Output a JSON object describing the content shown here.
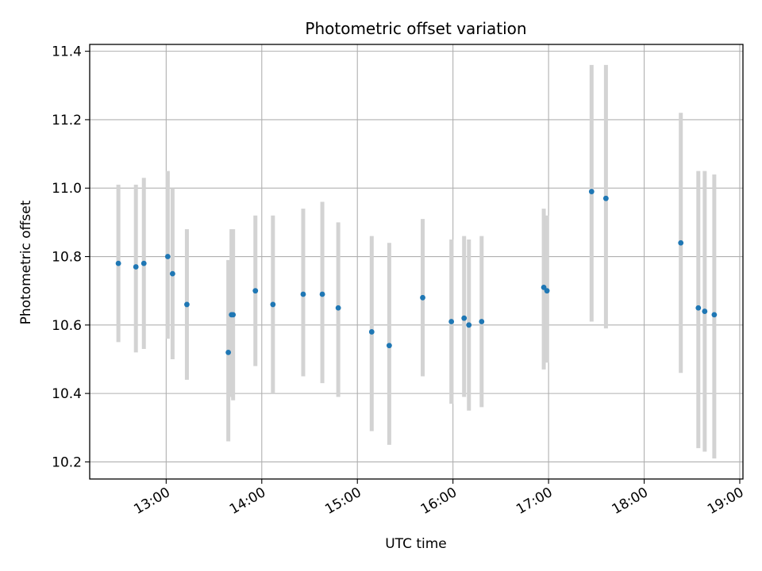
{
  "chart_data": {
    "type": "scatter",
    "title": "Photometric offset variation",
    "xlabel": "UTC time",
    "ylabel": "Photometric offset",
    "x_tick_labels": [
      "13:00",
      "14:00",
      "15:00",
      "16:00",
      "17:00",
      "18:00",
      "19:00"
    ],
    "y_tick_labels": [
      "10.2",
      "10.4",
      "10.6",
      "10.8",
      "11.0",
      "11.2",
      "11.4"
    ],
    "x_ticks": [
      "13:00",
      "14:00",
      "15:00",
      "16:00",
      "17:00",
      "18:00",
      "19:00"
    ],
    "y_ticks": [
      10.2,
      10.4,
      10.6,
      10.8,
      11.0,
      11.2,
      11.4
    ],
    "xlim": [
      "12:12",
      "19:02"
    ],
    "ylim": [
      10.15,
      11.42
    ],
    "grid": true,
    "colors": {
      "point": "#1f77b4",
      "errorbar": "#d3d3d3",
      "grid": "#b0b0b0"
    },
    "points": [
      {
        "x": "12:30",
        "y": 10.78,
        "ylow": 10.55,
        "yhigh": 11.01
      },
      {
        "x": "12:41",
        "y": 10.77,
        "ylow": 10.52,
        "yhigh": 11.01
      },
      {
        "x": "12:46",
        "y": 10.78,
        "ylow": 10.53,
        "yhigh": 11.03
      },
      {
        "x": "13:01",
        "y": 10.8,
        "ylow": 10.56,
        "yhigh": 11.05
      },
      {
        "x": "13:04",
        "y": 10.75,
        "ylow": 10.5,
        "yhigh": 11.0
      },
      {
        "x": "13:13",
        "y": 10.66,
        "ylow": 10.44,
        "yhigh": 10.88
      },
      {
        "x": "13:39",
        "y": 10.52,
        "ylow": 10.26,
        "yhigh": 10.79
      },
      {
        "x": "13:41",
        "y": 10.63,
        "ylow": 10.39,
        "yhigh": 10.88
      },
      {
        "x": "13:42",
        "y": 10.63,
        "ylow": 10.38,
        "yhigh": 10.88
      },
      {
        "x": "13:56",
        "y": 10.7,
        "ylow": 10.48,
        "yhigh": 10.92
      },
      {
        "x": "14:07",
        "y": 10.66,
        "ylow": 10.4,
        "yhigh": 10.92
      },
      {
        "x": "14:26",
        "y": 10.69,
        "ylow": 10.45,
        "yhigh": 10.94
      },
      {
        "x": "14:38",
        "y": 10.69,
        "ylow": 10.43,
        "yhigh": 10.96
      },
      {
        "x": "14:48",
        "y": 10.65,
        "ylow": 10.39,
        "yhigh": 10.9
      },
      {
        "x": "15:09",
        "y": 10.58,
        "ylow": 10.29,
        "yhigh": 10.86
      },
      {
        "x": "15:20",
        "y": 10.54,
        "ylow": 10.25,
        "yhigh": 10.84
      },
      {
        "x": "15:41",
        "y": 10.68,
        "ylow": 10.45,
        "yhigh": 10.91
      },
      {
        "x": "15:59",
        "y": 10.61,
        "ylow": 10.37,
        "yhigh": 10.85
      },
      {
        "x": "16:07",
        "y": 10.62,
        "ylow": 10.39,
        "yhigh": 10.86
      },
      {
        "x": "16:10",
        "y": 10.6,
        "ylow": 10.35,
        "yhigh": 10.85
      },
      {
        "x": "16:18",
        "y": 10.61,
        "ylow": 10.36,
        "yhigh": 10.86
      },
      {
        "x": "16:57",
        "y": 10.71,
        "ylow": 10.47,
        "yhigh": 10.94
      },
      {
        "x": "16:59",
        "y": 10.7,
        "ylow": 10.49,
        "yhigh": 10.92
      },
      {
        "x": "17:27",
        "y": 10.99,
        "ylow": 10.61,
        "yhigh": 11.36
      },
      {
        "x": "17:36",
        "y": 10.97,
        "ylow": 10.59,
        "yhigh": 11.36
      },
      {
        "x": "18:23",
        "y": 10.84,
        "ylow": 10.46,
        "yhigh": 11.22
      },
      {
        "x": "18:34",
        "y": 10.65,
        "ylow": 10.24,
        "yhigh": 11.05
      },
      {
        "x": "18:38",
        "y": 10.64,
        "ylow": 10.23,
        "yhigh": 11.05
      },
      {
        "x": "18:44",
        "y": 10.63,
        "ylow": 10.21,
        "yhigh": 11.04
      }
    ]
  }
}
